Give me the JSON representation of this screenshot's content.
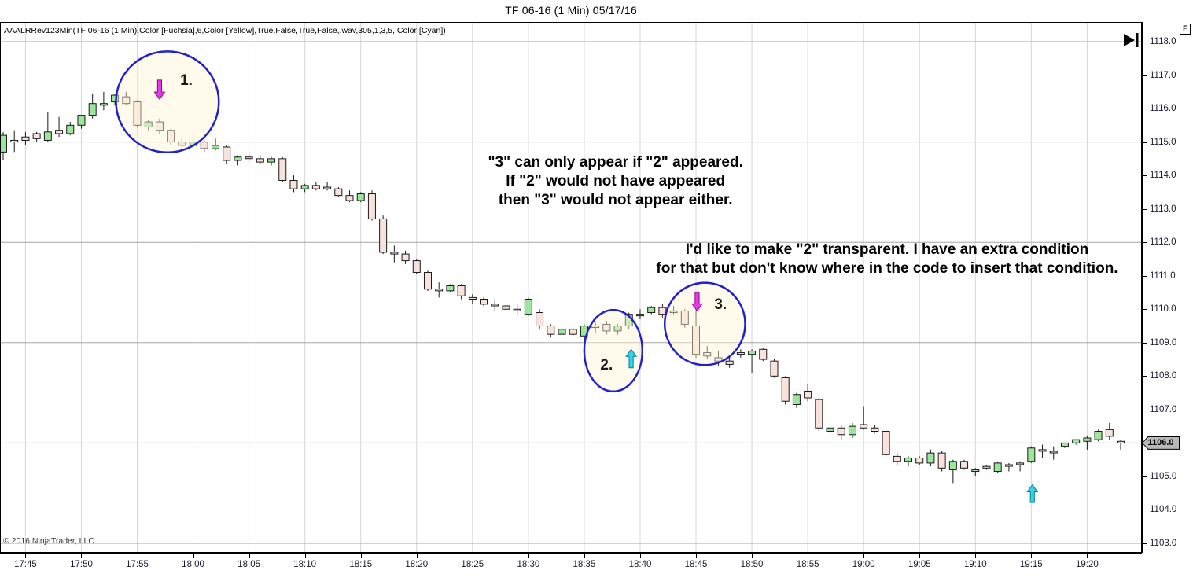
{
  "window": {
    "title": "TF 06-16 (1 Min)  05/17/16"
  },
  "chart": {
    "indicator_label": "AAALRRev123Min(TF 06-16 (1 Min),Color [Fuchsia],6,Color [Yellow],True,False,True,False,.wav,305,1,3,5,,Color [Cyan])",
    "copyright": "© 2016 NinjaTrader, LLC",
    "fullscreen_button": "F",
    "price_marker": "1106.0"
  },
  "chart_data": {
    "type": "candlestick",
    "title": "TF 06-16 (1 Min)  05/17/16",
    "instrument": "TF 06-16",
    "interval": "1 Min",
    "date": "05/17/16",
    "start_time": "17:43",
    "bar_interval_minutes": 1,
    "price_axis": {
      "tick_labels": [
        "1118.0",
        "1117.0",
        "1116.0",
        "1115.0",
        "1114.0",
        "1113.0",
        "1112.0",
        "1111.0",
        "1110.0",
        "1109.0",
        "1108.0",
        "1107.0",
        "1106.0",
        "1105.0",
        "1104.0",
        "1103.0"
      ],
      "range": [
        1103.0,
        1118.0
      ],
      "gridline_prices": [
        1118,
        1115,
        1112,
        1109,
        1106,
        1103
      ],
      "last_price": 1106.0
    },
    "time_axis": {
      "tick_labels": [
        "17:45",
        "17:50",
        "17:55",
        "18:00",
        "18:05",
        "18:10",
        "18:15",
        "18:20",
        "18:25",
        "18:30",
        "18:35",
        "18:40",
        "18:45",
        "18:50",
        "18:55",
        "19:00",
        "19:05",
        "19:10",
        "19:15",
        "19:20"
      ]
    },
    "bars_ohlc": [
      [
        1114.7,
        1115.3,
        1114.45,
        1115.2
      ],
      [
        1115.05,
        1115.35,
        1114.7,
        1115.05
      ],
      [
        1115.15,
        1115.3,
        1114.9,
        1115.05
      ],
      [
        1115.25,
        1115.3,
        1115.0,
        1115.1
      ],
      [
        1115.05,
        1115.9,
        1115.0,
        1115.3
      ],
      [
        1115.35,
        1115.75,
        1115.15,
        1115.25
      ],
      [
        1115.25,
        1115.6,
        1115.2,
        1115.5
      ],
      [
        1115.5,
        1115.8,
        1115.4,
        1115.8
      ],
      [
        1115.8,
        1116.45,
        1115.7,
        1116.15
      ],
      [
        1116.1,
        1116.5,
        1115.95,
        1116.15
      ],
      [
        1116.2,
        1116.45,
        1116.1,
        1116.4
      ],
      [
        1116.35,
        1116.5,
        1116.1,
        1116.15
      ],
      [
        1116.2,
        1116.25,
        1115.45,
        1115.5
      ],
      [
        1115.45,
        1115.65,
        1115.35,
        1115.6
      ],
      [
        1115.6,
        1115.7,
        1115.25,
        1115.35
      ],
      [
        1115.35,
        1115.4,
        1114.9,
        1115.0
      ],
      [
        1115.0,
        1115.15,
        1114.85,
        1114.9
      ],
      [
        1114.9,
        1115.35,
        1114.85,
        1115.0
      ],
      [
        1115.0,
        1115.05,
        1114.7,
        1114.8
      ],
      [
        1114.8,
        1115.1,
        1114.75,
        1114.9
      ],
      [
        1114.85,
        1114.9,
        1114.35,
        1114.45
      ],
      [
        1114.45,
        1114.6,
        1114.3,
        1114.55
      ],
      [
        1114.55,
        1114.7,
        1114.4,
        1114.55
      ],
      [
        1114.5,
        1114.6,
        1114.35,
        1114.4
      ],
      [
        1114.4,
        1114.55,
        1114.3,
        1114.5
      ],
      [
        1114.5,
        1114.55,
        1113.8,
        1113.85
      ],
      [
        1113.85,
        1114.0,
        1113.5,
        1113.6
      ],
      [
        1113.6,
        1113.75,
        1113.5,
        1113.7
      ],
      [
        1113.7,
        1113.8,
        1113.55,
        1113.6
      ],
      [
        1113.65,
        1113.8,
        1113.55,
        1113.6
      ],
      [
        1113.6,
        1113.65,
        1113.35,
        1113.4
      ],
      [
        1113.4,
        1113.55,
        1113.2,
        1113.25
      ],
      [
        1113.25,
        1113.5,
        1113.2,
        1113.45
      ],
      [
        1113.45,
        1113.55,
        1112.65,
        1112.7
      ],
      [
        1112.7,
        1112.8,
        1111.65,
        1111.7
      ],
      [
        1111.7,
        1111.9,
        1111.4,
        1111.65
      ],
      [
        1111.65,
        1111.75,
        1111.35,
        1111.45
      ],
      [
        1111.45,
        1111.5,
        1111.05,
        1111.1
      ],
      [
        1111.1,
        1111.15,
        1110.55,
        1110.6
      ],
      [
        1110.6,
        1110.8,
        1110.35,
        1110.55
      ],
      [
        1110.55,
        1110.75,
        1110.5,
        1110.7
      ],
      [
        1110.7,
        1110.75,
        1110.3,
        1110.4
      ],
      [
        1110.35,
        1110.45,
        1110.15,
        1110.3
      ],
      [
        1110.3,
        1110.35,
        1110.1,
        1110.15
      ],
      [
        1110.15,
        1110.3,
        1109.95,
        1110.1
      ],
      [
        1110.1,
        1110.2,
        1109.95,
        1110.0
      ],
      [
        1110.0,
        1110.15,
        1109.85,
        1110.0
      ],
      [
        1109.85,
        1110.35,
        1109.8,
        1110.3
      ],
      [
        1109.9,
        1110.0,
        1109.4,
        1109.5
      ],
      [
        1109.5,
        1109.55,
        1109.15,
        1109.25
      ],
      [
        1109.25,
        1109.45,
        1109.15,
        1109.4
      ],
      [
        1109.4,
        1109.45,
        1109.2,
        1109.25
      ],
      [
        1109.2,
        1109.55,
        1109.1,
        1109.5
      ],
      [
        1109.5,
        1109.6,
        1109.3,
        1109.5
      ],
      [
        1109.55,
        1109.65,
        1109.25,
        1109.35
      ],
      [
        1109.35,
        1109.55,
        1109.25,
        1109.5
      ],
      [
        1109.5,
        1109.9,
        1109.4,
        1109.85
      ],
      [
        1109.85,
        1110.0,
        1109.7,
        1109.85
      ],
      [
        1109.9,
        1110.1,
        1109.85,
        1110.05
      ],
      [
        1110.05,
        1110.15,
        1109.75,
        1109.85
      ],
      [
        1109.9,
        1110.1,
        1109.85,
        1109.95
      ],
      [
        1109.95,
        1110.0,
        1109.45,
        1109.55
      ],
      [
        1109.5,
        1110.05,
        1108.55,
        1108.65
      ],
      [
        1108.7,
        1108.9,
        1108.5,
        1108.6
      ],
      [
        1108.55,
        1108.75,
        1108.3,
        1108.45
      ],
      [
        1108.45,
        1108.6,
        1108.25,
        1108.35
      ],
      [
        1108.7,
        1108.8,
        1108.55,
        1108.7
      ],
      [
        1108.65,
        1108.8,
        1108.1,
        1108.75
      ],
      [
        1108.8,
        1108.85,
        1108.45,
        1108.5
      ],
      [
        1108.45,
        1108.5,
        1107.95,
        1108.0
      ],
      [
        1107.95,
        1108.0,
        1107.15,
        1107.25
      ],
      [
        1107.15,
        1107.5,
        1107.05,
        1107.45
      ],
      [
        1107.55,
        1107.75,
        1107.25,
        1107.35
      ],
      [
        1107.3,
        1107.35,
        1106.35,
        1106.45
      ],
      [
        1106.35,
        1106.5,
        1106.15,
        1106.45
      ],
      [
        1106.45,
        1106.55,
        1106.1,
        1106.25
      ],
      [
        1106.25,
        1106.6,
        1106.15,
        1106.5
      ],
      [
        1106.55,
        1107.1,
        1106.4,
        1106.45
      ],
      [
        1106.45,
        1106.55,
        1106.3,
        1106.35
      ],
      [
        1106.35,
        1106.4,
        1105.55,
        1105.65
      ],
      [
        1105.6,
        1105.7,
        1105.35,
        1105.45
      ],
      [
        1105.45,
        1105.6,
        1105.3,
        1105.55
      ],
      [
        1105.55,
        1105.6,
        1105.35,
        1105.4
      ],
      [
        1105.4,
        1105.8,
        1105.3,
        1105.7
      ],
      [
        1105.7,
        1105.75,
        1105.15,
        1105.25
      ],
      [
        1105.2,
        1105.5,
        1104.8,
        1105.45
      ],
      [
        1105.45,
        1105.5,
        1105.2,
        1105.25
      ],
      [
        1105.15,
        1105.25,
        1105.0,
        1105.2
      ],
      [
        1105.3,
        1105.35,
        1105.2,
        1105.25
      ],
      [
        1105.15,
        1105.45,
        1105.1,
        1105.4
      ],
      [
        1105.35,
        1105.4,
        1105.15,
        1105.35
      ],
      [
        1105.4,
        1105.45,
        1105.15,
        1105.4
      ],
      [
        1105.45,
        1105.9,
        1105.4,
        1105.85
      ],
      [
        1105.8,
        1105.95,
        1105.55,
        1105.8
      ],
      [
        1105.75,
        1105.9,
        1105.5,
        1105.75
      ],
      [
        1105.9,
        1106.0,
        1105.85,
        1106.0
      ],
      [
        1106.0,
        1106.1,
        1105.95,
        1106.1
      ],
      [
        1106.05,
        1106.2,
        1105.8,
        1106.15
      ],
      [
        1106.1,
        1106.4,
        1106.05,
        1106.35
      ],
      [
        1106.4,
        1106.6,
        1106.1,
        1106.2
      ],
      [
        1106.05,
        1106.1,
        1105.8,
        1106.0
      ]
    ],
    "annotations": {
      "circles": [
        {
          "label": "1.",
          "center_bar": 14.7,
          "center_price": 1116.2,
          "rx_bars": 4.6,
          "ry_price": 1.51,
          "label_bar": 16.4,
          "label_price": 1116.82
        },
        {
          "label": "2.",
          "center_bar": 54.6,
          "center_price": 1108.76,
          "rx_bars": 2.6,
          "ry_price": 1.22,
          "label_bar": 54.0,
          "label_price": 1108.31
        },
        {
          "label": "3.",
          "center_bar": 62.8,
          "center_price": 1109.56,
          "rx_bars": 3.6,
          "ry_price": 1.23,
          "label_bar": 64.2,
          "label_price": 1110.12
        }
      ],
      "arrows": [
        {
          "direction": "down",
          "color": "fuchsia",
          "bar": 14.0,
          "tip_price": 1116.28,
          "tail_price": 1116.85
        },
        {
          "direction": "up",
          "color": "cyan",
          "bar": 56.2,
          "tip_price": 1108.8,
          "tail_price": 1108.25
        },
        {
          "direction": "down",
          "color": "fuchsia",
          "bar": 62.1,
          "tip_price": 1109.95,
          "tail_price": 1110.5
        },
        {
          "direction": "up",
          "color": "cyan",
          "bar": 92.1,
          "tip_price": 1104.75,
          "tail_price": 1104.22
        }
      ],
      "texts": [
        {
          "lines": [
            "\"3\" can only appear if \"2\" appeared.",
            "If \"2\" would not have appeared",
            "then \"3\" would not appear either."
          ],
          "center_bar": 54.8,
          "top_price": 1114.67
        },
        {
          "lines": [
            "I'd like to make \"2\" transparent. I have an extra condition",
            "for that but don't know where in the code to insert that condition."
          ],
          "center_bar": 79.1,
          "top_price": 1112.05
        }
      ]
    },
    "colors": {
      "up_candle": "#9ce69c",
      "down_candle": "#f8e3dc",
      "candle_outline": "#1a1a1a",
      "wick": "#1a1a1a",
      "grid_vertical": "#d6d6d6",
      "grid_horizontal": "#a6a6a6",
      "circle_stroke": "#2020cf",
      "circle_fill": "rgba(252,246,215,0.45)",
      "arrow_fuchsia": "#e03fe0",
      "arrow_fuchsia_stroke": "#990099",
      "arrow_cyan": "#2fd5e8",
      "arrow_cyan_stroke": "#0e7c94",
      "marker_bg": "#b8b8b8"
    },
    "legend_position": "none",
    "grid": true
  }
}
